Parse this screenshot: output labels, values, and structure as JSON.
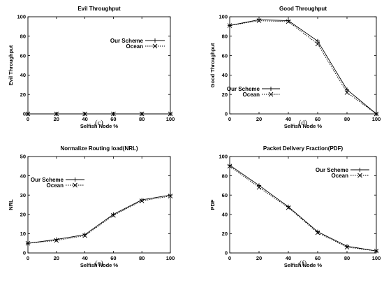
{
  "figure": {
    "colors": {
      "axis": "#000000",
      "series": "#000000",
      "background": "#ffffff"
    }
  },
  "chart_data": [
    {
      "id": "c",
      "type": "line",
      "title": "Evil Throughput",
      "xlabel": "Selfish Node %",
      "ylabel": "Evil Throughput",
      "caption": "(c)",
      "x": [
        0,
        20,
        40,
        60,
        80,
        100
      ],
      "xlim": [
        0,
        100
      ],
      "ylim": [
        0,
        100
      ],
      "xticks": [
        "0",
        "20",
        "40",
        "60",
        "80",
        "100"
      ],
      "yticks": [
        "0",
        "20",
        "40",
        "60",
        "80",
        "100"
      ],
      "grid": false,
      "legend": "top-right",
      "series": [
        {
          "name": "Our Scheme",
          "marker": "plus",
          "dash": "solid",
          "values": [
            0,
            0,
            0,
            0,
            0,
            0
          ]
        },
        {
          "name": "Ocean",
          "marker": "cross",
          "dash": "dotted",
          "values": [
            0,
            0,
            0,
            0,
            0,
            0
          ]
        }
      ]
    },
    {
      "id": "d",
      "type": "line",
      "title": "Good Throughput",
      "xlabel": "Selfish Node %",
      "ylabel": "Good Throughput",
      "caption": "(d)",
      "x": [
        0,
        20,
        40,
        60,
        80,
        100
      ],
      "xlim": [
        0,
        100
      ],
      "ylim": [
        0,
        100
      ],
      "xticks": [
        "0",
        "20",
        "40",
        "60",
        "80",
        "100"
      ],
      "yticks": [
        "0",
        "20",
        "40",
        "60",
        "80",
        "100"
      ],
      "grid": false,
      "legend": "bottom-center",
      "series": [
        {
          "name": "Our Scheme",
          "marker": "plus",
          "dash": "solid",
          "values": [
            91,
            97,
            96,
            75,
            25,
            0
          ]
        },
        {
          "name": "Ocean",
          "marker": "cross",
          "dash": "dotted",
          "values": [
            91,
            96,
            95,
            72,
            22,
            0
          ]
        }
      ]
    },
    {
      "id": "e",
      "type": "line",
      "title": "Normalize Routing load(NRL)",
      "xlabel": "Selfish Node %",
      "ylabel": "NRL",
      "caption": "(e)",
      "x": [
        0,
        20,
        40,
        60,
        80,
        100
      ],
      "xlim": [
        0,
        100
      ],
      "ylim": [
        0,
        50
      ],
      "xticks": [
        "0",
        "20",
        "40",
        "60",
        "80",
        "100"
      ],
      "yticks": [
        "0",
        "10",
        "20",
        "30",
        "40",
        "50"
      ],
      "grid": false,
      "legend": "top-left",
      "series": [
        {
          "name": "Our Scheme",
          "marker": "plus",
          "dash": "solid",
          "values": [
            5,
            7,
            9.5,
            20,
            27.5,
            30
          ]
        },
        {
          "name": "Ocean",
          "marker": "cross",
          "dash": "dotted",
          "values": [
            5,
            6.5,
            9,
            19.5,
            27,
            29.5
          ]
        }
      ]
    },
    {
      "id": "f",
      "type": "line",
      "title": "Packet Delivery Fraction(PDF)",
      "xlabel": "Selfish Node %",
      "ylabel": "PDF",
      "caption": "(f)",
      "x": [
        0,
        20,
        40,
        60,
        80,
        100
      ],
      "xlim": [
        0,
        100
      ],
      "ylim": [
        0,
        100
      ],
      "xticks": [
        "0",
        "20",
        "40",
        "60",
        "80",
        "100"
      ],
      "yticks": [
        "0",
        "20",
        "40",
        "60",
        "80",
        "100"
      ],
      "grid": false,
      "legend": "top-right",
      "series": [
        {
          "name": "Our Scheme",
          "marker": "plus",
          "dash": "solid",
          "values": [
            91,
            70,
            48,
            22,
            7,
            2
          ]
        },
        {
          "name": "Ocean",
          "marker": "cross",
          "dash": "dotted",
          "values": [
            90,
            68,
            47,
            21,
            6,
            2
          ]
        }
      ]
    }
  ]
}
